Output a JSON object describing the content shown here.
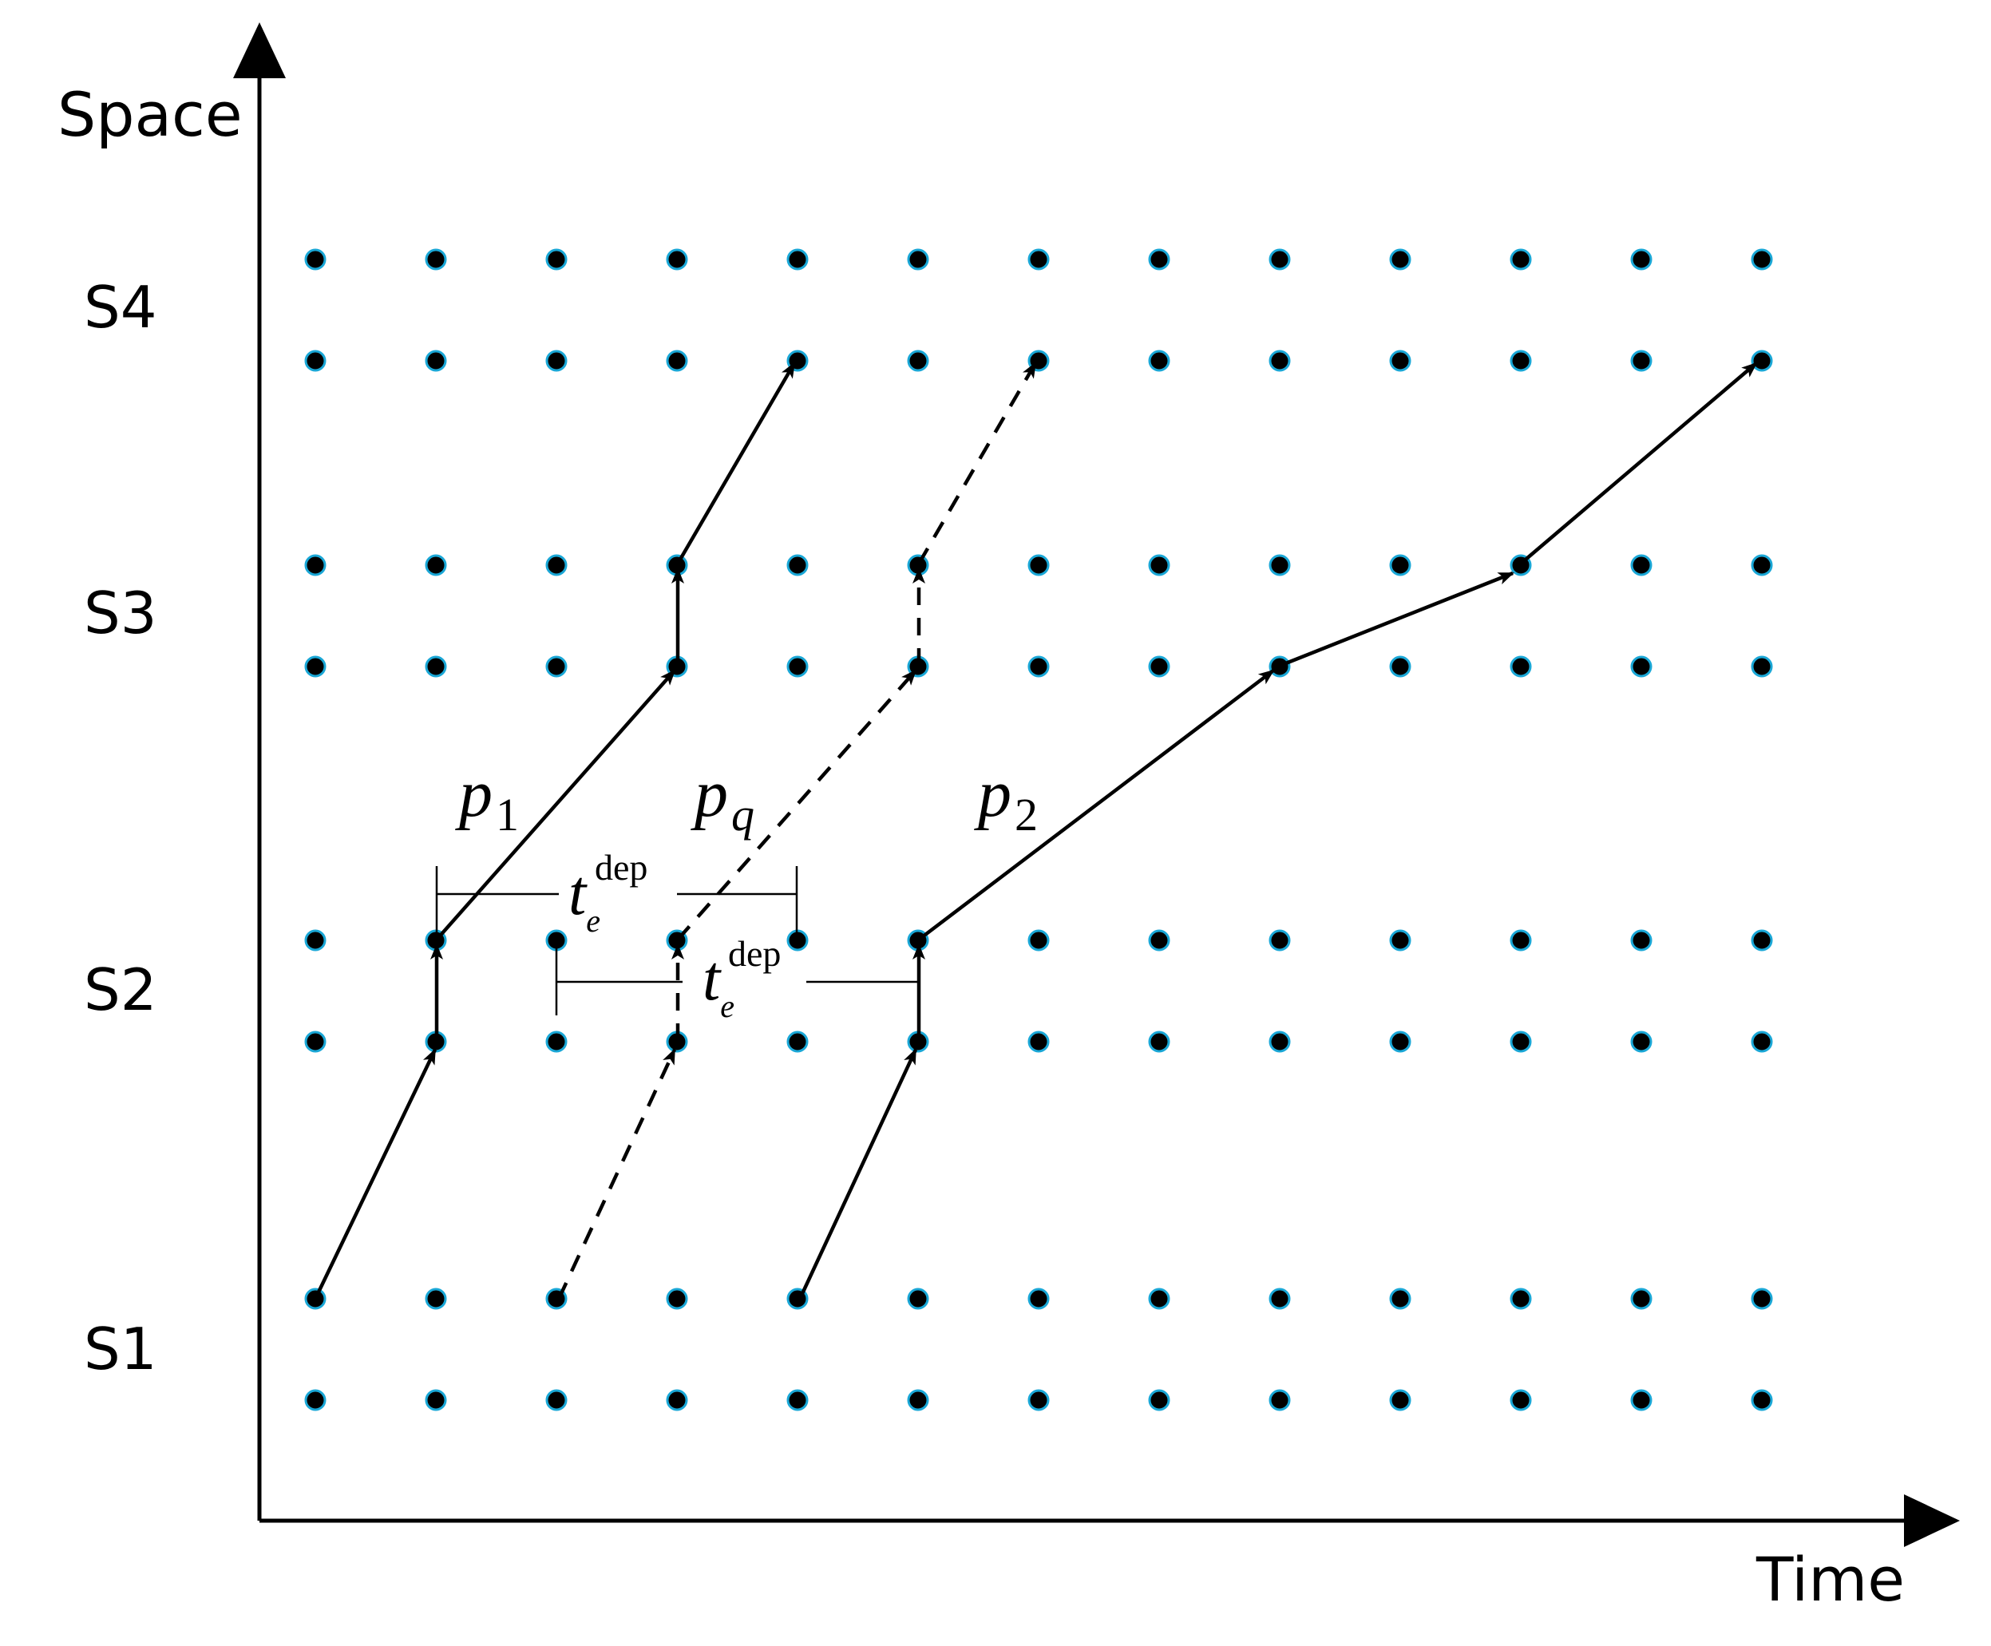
{
  "axes": {
    "x_label": "Time",
    "y_label": "Space"
  },
  "stations": [
    "S1",
    "S2",
    "S3",
    "S4"
  ],
  "paths": [
    {
      "id": "p1",
      "label_base": "p",
      "label_sub": "1",
      "style": "solid"
    },
    {
      "id": "pq",
      "label_base": "p",
      "label_sub": "q",
      "style": "dashed"
    },
    {
      "id": "p2",
      "label_base": "p",
      "label_sub": "2",
      "style": "solid"
    }
  ],
  "headways": [
    {
      "base": "t",
      "sub": "e",
      "sup": "dep"
    },
    {
      "base": "t",
      "sub": "e",
      "sup": "dep"
    }
  ],
  "colors": {
    "node_fill": "#000000",
    "node_outline": "#1aa7d6",
    "line": "#000000"
  }
}
